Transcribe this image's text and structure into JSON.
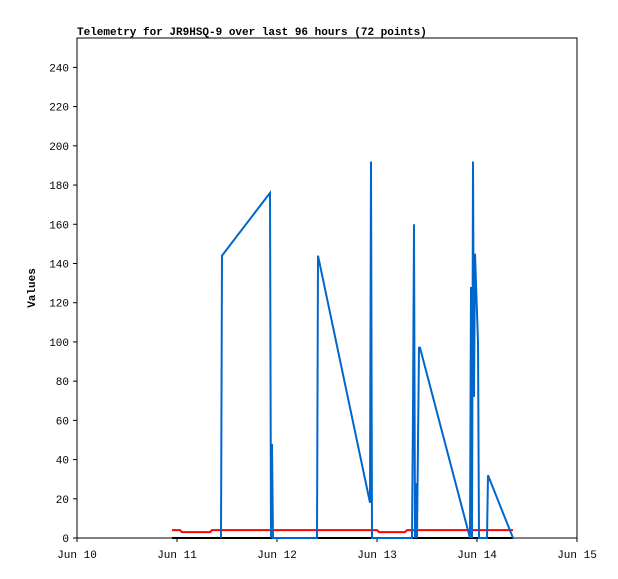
{
  "chart_data": {
    "type": "line",
    "title": "Telemetry for JR9HSQ-9 over last 96 hours (72 points)",
    "y_label": "Values",
    "xlim": [
      10,
      15
    ],
    "xticks": [
      {
        "value": 10,
        "label": "Jun 10"
      },
      {
        "value": 11,
        "label": "Jun 11"
      },
      {
        "value": 12,
        "label": "Jun 12"
      },
      {
        "value": 13,
        "label": "Jun 13"
      },
      {
        "value": 14,
        "label": "Jun 14"
      },
      {
        "value": 15,
        "label": "Jun 15"
      }
    ],
    "ylim": [
      0,
      255
    ],
    "yticks": [
      0,
      20,
      40,
      60,
      80,
      100,
      120,
      140,
      160,
      180,
      200,
      220,
      240
    ],
    "series": [
      {
        "color": "#000000",
        "x": [
          10.95,
          14.36
        ],
        "values": [
          0,
          0
        ]
      },
      {
        "color": "#ff0000",
        "x": [
          10.95,
          11.03,
          11.05,
          11.33,
          11.35,
          13.0,
          13.02,
          13.28,
          13.3,
          14.36
        ],
        "values": [
          4,
          4,
          3,
          3,
          4,
          4,
          3,
          3,
          4,
          4
        ]
      },
      {
        "color": "#0066cc",
        "x": [
          11.44,
          11.45,
          11.93,
          11.94,
          11.95,
          11.96,
          12.4,
          12.41,
          12.93,
          12.94,
          12.95,
          13.35,
          13.36,
          13.37,
          13.38,
          13.39,
          13.4,
          13.42,
          13.43,
          13.93,
          13.94,
          13.95,
          13.96,
          13.97,
          13.98,
          13.99,
          14.01,
          14.02,
          14.1,
          14.11,
          14.36
        ],
        "values": [
          0,
          144,
          176,
          0,
          48,
          0,
          0,
          144,
          18,
          192,
          0,
          0,
          64,
          160,
          0,
          28,
          0,
          97,
          97,
          0,
          128,
          0,
          192,
          72,
          145,
          130,
          100,
          0,
          0,
          32,
          0
        ]
      }
    ]
  }
}
